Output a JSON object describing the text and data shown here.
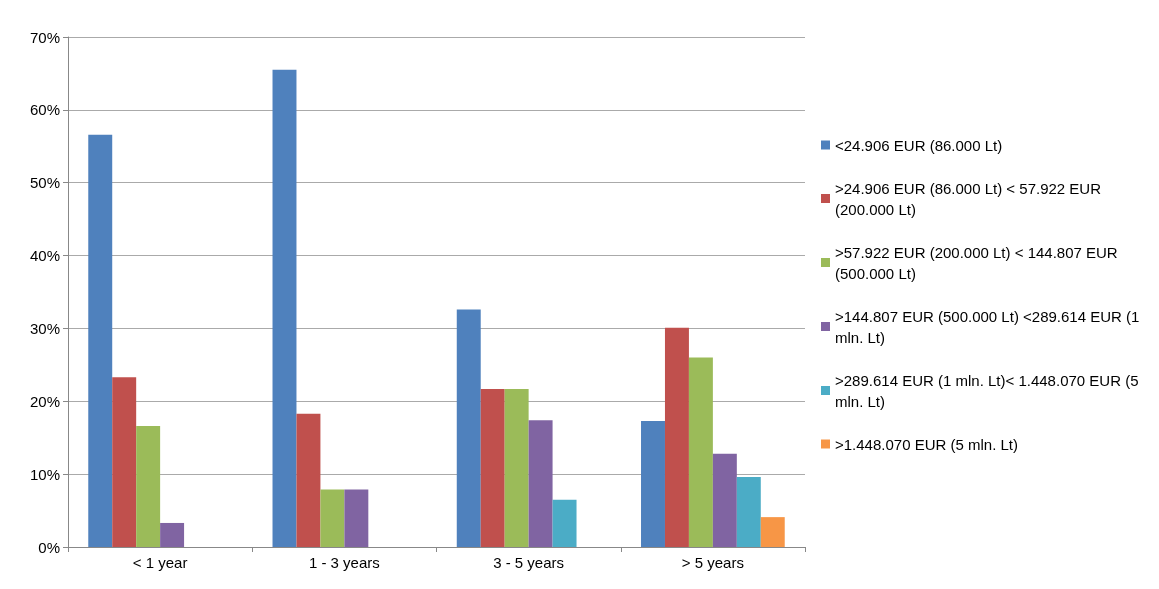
{
  "chart_data": {
    "type": "bar",
    "categories": [
      "< 1 year",
      "1 - 3 years",
      "3 - 5 years",
      "> 5 years"
    ],
    "series": [
      {
        "name": "<24.906 EUR (86.000 Lt)",
        "color": "#4f81bd",
        "values": [
          56.6,
          65.5,
          32.6,
          17.3
        ]
      },
      {
        "name": ">24.906 EUR (86.000 Lt) < 57.922 EUR (200.000 Lt)",
        "color": "#c0504d",
        "values": [
          23.3,
          18.3,
          21.7,
          30.1
        ]
      },
      {
        "name": ">57.922 EUR (200.000 Lt) < 144.807 EUR (500.000 Lt)",
        "color": "#9bbb59",
        "values": [
          16.6,
          7.9,
          21.7,
          26.0
        ]
      },
      {
        "name": ">144.807 EUR (500.000 Lt) <289.614 EUR (1 mln. Lt)",
        "color": "#8064a2",
        "values": [
          3.3,
          7.9,
          17.4,
          12.8
        ]
      },
      {
        "name": ">289.614 EUR (1 mln. Lt)< 1.448.070 EUR (5 mln. Lt)",
        "color": "#4bacc6",
        "values": [
          null,
          null,
          6.5,
          9.6
        ]
      },
      {
        "name": ">1.448.070 EUR (5 mln. Lt)",
        "color": "#f79646",
        "values": [
          null,
          null,
          null,
          4.1
        ]
      }
    ],
    "ylim": [
      0,
      70
    ],
    "yticks": [
      {
        "value": 0,
        "label": "0%"
      },
      {
        "value": 10,
        "label": "10%"
      },
      {
        "value": 20,
        "label": "20%"
      },
      {
        "value": 30,
        "label": "30%"
      },
      {
        "value": 40,
        "label": "40%"
      },
      {
        "value": 50,
        "label": "50%"
      },
      {
        "value": 60,
        "label": "60%"
      },
      {
        "value": 70,
        "label": "70%"
      }
    ],
    "grid": "y",
    "legend": "right"
  }
}
